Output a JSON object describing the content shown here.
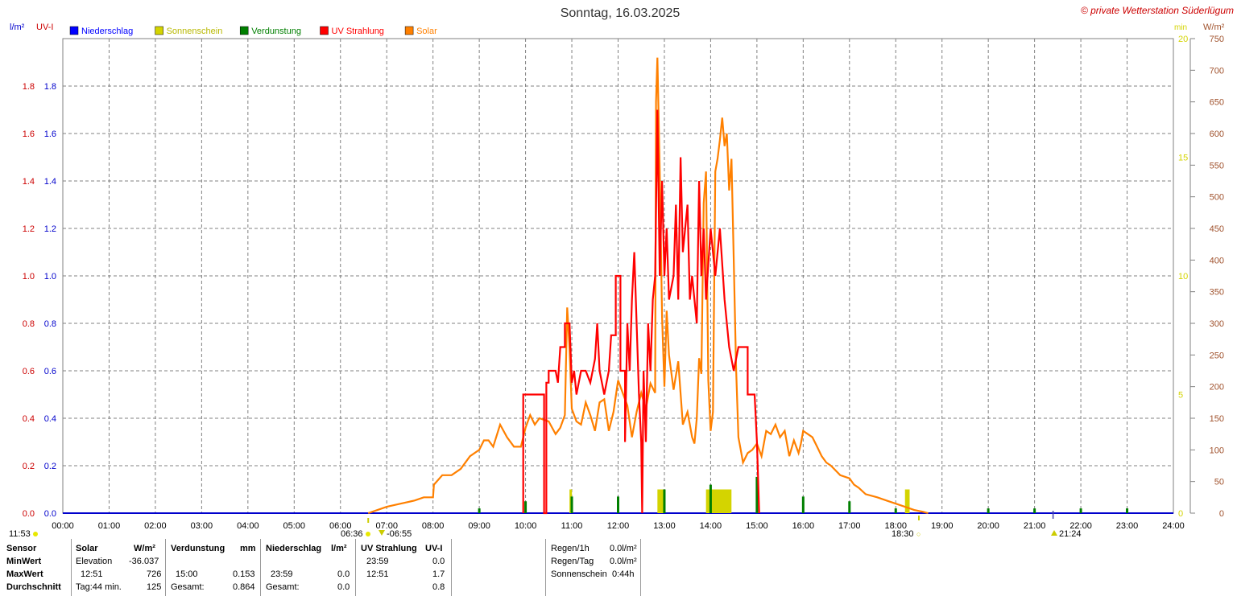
{
  "header": {
    "title": "Sonntag, 16.03.2025",
    "copyright": "© private Wetterstation Süderlügum"
  },
  "axes": {
    "left1_unit": "l/m²",
    "left2_unit": "UV-I",
    "right1_unit": "min",
    "right2_unit": "W/m²",
    "left_ticks": [
      "0.0",
      "0.2",
      "0.4",
      "0.6",
      "0.8",
      "1.0",
      "1.2",
      "1.4",
      "1.6",
      "1.8"
    ],
    "min_ticks": [
      "0",
      "5",
      "10",
      "15",
      "20"
    ],
    "wm2_ticks": [
      "0",
      "50",
      "100",
      "150",
      "200",
      "250",
      "300",
      "350",
      "400",
      "450",
      "500",
      "550",
      "600",
      "650",
      "700",
      "750"
    ],
    "x_ticks": [
      "00:00",
      "01:00",
      "02:00",
      "03:00",
      "04:00",
      "05:00",
      "06:00",
      "07:00",
      "08:00",
      "09:00",
      "10:00",
      "11:00",
      "12:00",
      "13:00",
      "14:00",
      "15:00",
      "16:00",
      "17:00",
      "18:00",
      "19:00",
      "20:00",
      "21:00",
      "22:00",
      "23:00",
      "24:00"
    ]
  },
  "legend": [
    {
      "label": "Niederschlag",
      "color": "#0000ff"
    },
    {
      "label": "Sonnenschein",
      "color": "#d4d400"
    },
    {
      "label": "Verdunstung",
      "color": "#007f00"
    },
    {
      "label": "UV Strahlung",
      "color": "#ff0000"
    },
    {
      "label": "Solar",
      "color": "#ff8000"
    }
  ],
  "markers": {
    "left_time": "11:53",
    "sunrise": "06:36",
    "sunrise_civil": "-06:55",
    "sunset": "18:30",
    "moon": "21:24"
  },
  "colors": {
    "rain": "#0000cc",
    "uv_axis": "#cc0000",
    "sunshine": "#d4d400",
    "evaporation": "#007f00",
    "uv": "#ff0000",
    "solar": "#ff8000",
    "grid": "#808080",
    "title": "#333333",
    "copyright": "#cc0000",
    "wm2_axis": "#a0522d"
  },
  "chart_data": {
    "type": "line",
    "title": "Sonntag, 16.03.2025",
    "xlabel": "",
    "x_range_hours": [
      0,
      24
    ],
    "y_left_range": [
      0,
      2.0
    ],
    "y_min_range": [
      0,
      20
    ],
    "y_wm2_range": [
      0,
      750
    ],
    "grid": true,
    "legend_position": "top-left",
    "series": [
      {
        "name": "Solar",
        "unit": "W/m²",
        "axis": "W/m²",
        "points": [
          [
            6.6,
            0
          ],
          [
            6.8,
            5
          ],
          [
            7.0,
            10
          ],
          [
            7.3,
            15
          ],
          [
            7.6,
            20
          ],
          [
            7.8,
            25
          ],
          [
            8.0,
            25
          ],
          [
            8.02,
            45
          ],
          [
            8.2,
            60
          ],
          [
            8.4,
            60
          ],
          [
            8.6,
            70
          ],
          [
            8.8,
            90
          ],
          [
            9.0,
            100
          ],
          [
            9.1,
            115
          ],
          [
            9.2,
            115
          ],
          [
            9.3,
            105
          ],
          [
            9.45,
            140
          ],
          [
            9.6,
            120
          ],
          [
            9.75,
            105
          ],
          [
            9.9,
            105
          ],
          [
            10.0,
            135
          ],
          [
            10.1,
            155
          ],
          [
            10.2,
            140
          ],
          [
            10.3,
            150
          ],
          [
            10.5,
            145
          ],
          [
            10.65,
            125
          ],
          [
            10.75,
            135
          ],
          [
            10.85,
            155
          ],
          [
            10.9,
            325
          ],
          [
            10.95,
            260
          ],
          [
            11.0,
            165
          ],
          [
            11.1,
            145
          ],
          [
            11.2,
            140
          ],
          [
            11.3,
            175
          ],
          [
            11.4,
            155
          ],
          [
            11.5,
            130
          ],
          [
            11.6,
            175
          ],
          [
            11.7,
            180
          ],
          [
            11.8,
            130
          ],
          [
            11.9,
            160
          ],
          [
            12.0,
            210
          ],
          [
            12.1,
            190
          ],
          [
            12.2,
            170
          ],
          [
            12.3,
            120
          ],
          [
            12.4,
            160
          ],
          [
            12.5,
            190
          ],
          [
            12.6,
            165
          ],
          [
            12.7,
            205
          ],
          [
            12.8,
            190
          ],
          [
            12.82,
            650
          ],
          [
            12.85,
            720
          ],
          [
            12.9,
            540
          ],
          [
            12.95,
            310
          ],
          [
            13.0,
            200
          ],
          [
            13.05,
            320
          ],
          [
            13.1,
            250
          ],
          [
            13.2,
            195
          ],
          [
            13.3,
            240
          ],
          [
            13.4,
            140
          ],
          [
            13.5,
            160
          ],
          [
            13.55,
            140
          ],
          [
            13.6,
            120
          ],
          [
            13.65,
            110
          ],
          [
            13.7,
            150
          ],
          [
            13.75,
            245
          ],
          [
            13.8,
            220
          ],
          [
            13.85,
            490
          ],
          [
            13.9,
            540
          ],
          [
            13.95,
            210
          ],
          [
            14.0,
            130
          ],
          [
            14.05,
            160
          ],
          [
            14.1,
            540
          ],
          [
            14.15,
            560
          ],
          [
            14.2,
            590
          ],
          [
            14.25,
            625
          ],
          [
            14.3,
            580
          ],
          [
            14.35,
            600
          ],
          [
            14.4,
            510
          ],
          [
            14.45,
            560
          ],
          [
            14.5,
            400
          ],
          [
            14.55,
            230
          ],
          [
            14.6,
            120
          ],
          [
            14.65,
            100
          ],
          [
            14.7,
            80
          ],
          [
            14.8,
            95
          ],
          [
            14.9,
            100
          ],
          [
            15.0,
            110
          ],
          [
            15.1,
            90
          ],
          [
            15.2,
            130
          ],
          [
            15.3,
            125
          ],
          [
            15.4,
            140
          ],
          [
            15.5,
            120
          ],
          [
            15.6,
            130
          ],
          [
            15.7,
            90
          ],
          [
            15.8,
            115
          ],
          [
            15.9,
            95
          ],
          [
            15.95,
            110
          ],
          [
            16.0,
            130
          ],
          [
            16.1,
            125
          ],
          [
            16.2,
            120
          ],
          [
            16.3,
            105
          ],
          [
            16.4,
            90
          ],
          [
            16.5,
            80
          ],
          [
            16.6,
            75
          ],
          [
            16.8,
            60
          ],
          [
            17.0,
            55
          ],
          [
            17.1,
            45
          ],
          [
            17.2,
            40
          ],
          [
            17.35,
            30
          ],
          [
            17.6,
            25
          ],
          [
            17.8,
            20
          ],
          [
            18.0,
            15
          ],
          [
            18.2,
            10
          ],
          [
            18.4,
            5
          ],
          [
            18.6,
            2
          ],
          [
            18.7,
            0
          ]
        ]
      },
      {
        "name": "UV Strahlung",
        "unit": "UV-I",
        "axis": "UV-I",
        "points": [
          [
            9.95,
            0
          ],
          [
            9.95,
            0.5
          ],
          [
            10.4,
            0.5
          ],
          [
            10.4,
            0
          ],
          [
            10.45,
            0
          ],
          [
            10.45,
            0.55
          ],
          [
            10.5,
            0.55
          ],
          [
            10.5,
            0.6
          ],
          [
            10.65,
            0.6
          ],
          [
            10.7,
            0.55
          ],
          [
            10.75,
            0.7
          ],
          [
            10.85,
            0.7
          ],
          [
            10.85,
            0.8
          ],
          [
            10.95,
            0.8
          ],
          [
            11.0,
            0.55
          ],
          [
            11.05,
            0.6
          ],
          [
            11.1,
            0.5
          ],
          [
            11.2,
            0.6
          ],
          [
            11.3,
            0.6
          ],
          [
            11.4,
            0.55
          ],
          [
            11.5,
            0.65
          ],
          [
            11.55,
            0.8
          ],
          [
            11.6,
            0.6
          ],
          [
            11.7,
            0.5
          ],
          [
            11.8,
            0.6
          ],
          [
            11.85,
            0.75
          ],
          [
            11.95,
            0.75
          ],
          [
            11.95,
            1.0
          ],
          [
            12.05,
            1.0
          ],
          [
            12.05,
            0.6
          ],
          [
            12.15,
            0.6
          ],
          [
            12.15,
            0.3
          ],
          [
            12.2,
            0.8
          ],
          [
            12.25,
            0.6
          ],
          [
            12.3,
            0.9
          ],
          [
            12.35,
            1.1
          ],
          [
            12.4,
            0.8
          ],
          [
            12.45,
            0.5
          ],
          [
            12.5,
            0.3
          ],
          [
            12.52,
            0
          ],
          [
            12.55,
            0.6
          ],
          [
            12.6,
            0.3
          ],
          [
            12.65,
            0.8
          ],
          [
            12.7,
            0.6
          ],
          [
            12.75,
            0.9
          ],
          [
            12.8,
            1.0
          ],
          [
            12.85,
            1.7
          ],
          [
            12.9,
            1.0
          ],
          [
            12.95,
            1.4
          ],
          [
            13.0,
            1.0
          ],
          [
            13.05,
            1.2
          ],
          [
            13.1,
            0.9
          ],
          [
            13.2,
            1.0
          ],
          [
            13.25,
            1.3
          ],
          [
            13.3,
            0.9
          ],
          [
            13.35,
            1.5
          ],
          [
            13.4,
            1.1
          ],
          [
            13.5,
            1.3
          ],
          [
            13.55,
            0.9
          ],
          [
            13.6,
            1.0
          ],
          [
            13.7,
            0.8
          ],
          [
            13.75,
            1.4
          ],
          [
            13.8,
            1.0
          ],
          [
            13.85,
            1.2
          ],
          [
            13.9,
            0.9
          ],
          [
            14.0,
            1.2
          ],
          [
            14.1,
            1.0
          ],
          [
            14.2,
            1.2
          ],
          [
            14.3,
            0.9
          ],
          [
            14.4,
            0.7
          ],
          [
            14.5,
            0.6
          ],
          [
            14.6,
            0.7
          ],
          [
            14.8,
            0.7
          ],
          [
            14.8,
            0.5
          ],
          [
            14.95,
            0.5
          ],
          [
            15.0,
            0.3
          ],
          [
            15.05,
            0
          ]
        ]
      },
      {
        "name": "Sonnenschein",
        "unit": "min",
        "axis": "min",
        "bars": [
          [
            10.95,
            11.0,
            1
          ],
          [
            12.85,
            13.0,
            1
          ],
          [
            13.9,
            14.45,
            1
          ],
          [
            18.2,
            18.3,
            1
          ]
        ]
      },
      {
        "name": "Verdunstung",
        "unit": "mm",
        "axis": "l/m²",
        "bars": [
          [
            9.0,
            0.02
          ],
          [
            10.0,
            0.05
          ],
          [
            11.0,
            0.07
          ],
          [
            12.0,
            0.07
          ],
          [
            13.0,
            0.1
          ],
          [
            14.0,
            0.12
          ],
          [
            15.0,
            0.153
          ],
          [
            16.0,
            0.07
          ],
          [
            17.0,
            0.05
          ],
          [
            18.0,
            0.02
          ],
          [
            20.0,
            0.02
          ],
          [
            21.0,
            0.02
          ],
          [
            22.0,
            0.02
          ],
          [
            23.0,
            0.02
          ]
        ]
      },
      {
        "name": "Niederschlag",
        "unit": "l/m²",
        "axis": "l/m²",
        "values": [
          0
        ]
      }
    ]
  },
  "table": {
    "sensor": {
      "h": "Sensor",
      "min": "MinWert",
      "max": "MaxWert",
      "avg": "Durchschnitt"
    },
    "solar": {
      "h": "Solar",
      "unit": "W/m²",
      "min_label": "Elevation",
      "min_val": "-36.037",
      "max_time": "12:51",
      "max_val": "726",
      "avg_label": "Tag:44 min.",
      "avg_val": "125"
    },
    "verdunstung": {
      "h": "Verdunstung",
      "unit": "mm",
      "max_time": "15:00",
      "max_val": "0.153",
      "sum_label": "Gesamt:",
      "sum_val": "0.864"
    },
    "niederschlag": {
      "h": "Niederschlag",
      "unit": "l/m²",
      "max_time": "23:59",
      "max_val": "0.0",
      "sum_label": "Gesamt:",
      "sum_val": "0.0"
    },
    "uv": {
      "h": "UV Strahlung",
      "unit": "UV-I",
      "min_time": "23:59",
      "min_val": "0.0",
      "max_time": "12:51",
      "max_val": "1.7",
      "avg_val": "0.8"
    },
    "summary": {
      "r1_label": "Regen/1h",
      "r1_val": "0.0l/m²",
      "r2_label": "Regen/Tag",
      "r2_val": "0.0l/m²",
      "r3_label": "Sonnenschein",
      "r3_val": "0:44h"
    }
  }
}
